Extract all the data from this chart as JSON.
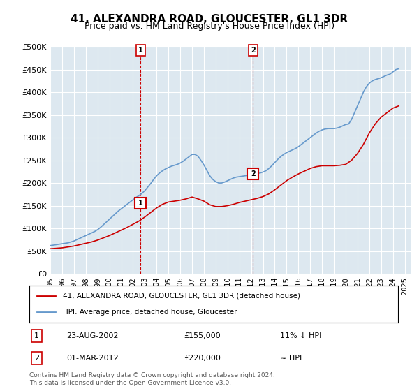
{
  "title": "41, ALEXANDRA ROAD, GLOUCESTER, GL1 3DR",
  "subtitle": "Price paid vs. HM Land Registry's House Price Index (HPI)",
  "hpi_color": "#6699cc",
  "price_color": "#cc0000",
  "vline_color": "#cc0000",
  "bg_color": "#dde8f0",
  "grid_color": "#ffffff",
  "ylim": [
    0,
    500000
  ],
  "yticks": [
    0,
    50000,
    100000,
    150000,
    200000,
    250000,
    300000,
    350000,
    400000,
    450000,
    500000
  ],
  "ytick_labels": [
    "£0",
    "£50K",
    "£100K",
    "£150K",
    "£200K",
    "£250K",
    "£300K",
    "£350K",
    "£400K",
    "£450K",
    "£500K"
  ],
  "xlim_start": 1995.0,
  "xlim_end": 2025.5,
  "xticks": [
    1995,
    1996,
    1997,
    1998,
    1999,
    2000,
    2001,
    2002,
    2003,
    2004,
    2005,
    2006,
    2007,
    2008,
    2009,
    2010,
    2011,
    2012,
    2013,
    2014,
    2015,
    2016,
    2017,
    2018,
    2019,
    2020,
    2021,
    2022,
    2023,
    2024,
    2025
  ],
  "purchase1_x": 2002.644,
  "purchase1_y": 155000,
  "purchase1_label": "1",
  "purchase1_date": "23-AUG-2002",
  "purchase1_price": "£155,000",
  "purchase1_hpi": "11% ↓ HPI",
  "purchase2_x": 2012.167,
  "purchase2_y": 220000,
  "purchase2_label": "2",
  "purchase2_date": "01-MAR-2012",
  "purchase2_price": "£220,000",
  "purchase2_hpi": "≈ HPI",
  "legend_line1": "41, ALEXANDRA ROAD, GLOUCESTER, GL1 3DR (detached house)",
  "legend_line2": "HPI: Average price, detached house, Gloucester",
  "footnote": "Contains HM Land Registry data © Crown copyright and database right 2024.\nThis data is licensed under the Open Government Licence v3.0.",
  "hpi_x": [
    1995.0,
    1995.25,
    1995.5,
    1995.75,
    1996.0,
    1996.25,
    1996.5,
    1996.75,
    1997.0,
    1997.25,
    1997.5,
    1997.75,
    1998.0,
    1998.25,
    1998.5,
    1998.75,
    1999.0,
    1999.25,
    1999.5,
    1999.75,
    2000.0,
    2000.25,
    2000.5,
    2000.75,
    2001.0,
    2001.25,
    2001.5,
    2001.75,
    2002.0,
    2002.25,
    2002.5,
    2002.75,
    2003.0,
    2003.25,
    2003.5,
    2003.75,
    2004.0,
    2004.25,
    2004.5,
    2004.75,
    2005.0,
    2005.25,
    2005.5,
    2005.75,
    2006.0,
    2006.25,
    2006.5,
    2006.75,
    2007.0,
    2007.25,
    2007.5,
    2007.75,
    2008.0,
    2008.25,
    2008.5,
    2008.75,
    2009.0,
    2009.25,
    2009.5,
    2009.75,
    2010.0,
    2010.25,
    2010.5,
    2010.75,
    2011.0,
    2011.25,
    2011.5,
    2011.75,
    2012.0,
    2012.25,
    2012.5,
    2012.75,
    2013.0,
    2013.25,
    2013.5,
    2013.75,
    2014.0,
    2014.25,
    2014.5,
    2014.75,
    2015.0,
    2015.25,
    2015.5,
    2015.75,
    2016.0,
    2016.25,
    2016.5,
    2016.75,
    2017.0,
    2017.25,
    2017.5,
    2017.75,
    2018.0,
    2018.25,
    2018.5,
    2018.75,
    2019.0,
    2019.25,
    2019.5,
    2019.75,
    2020.0,
    2020.25,
    2020.5,
    2020.75,
    2021.0,
    2021.25,
    2021.5,
    2021.75,
    2022.0,
    2022.25,
    2022.5,
    2022.75,
    2023.0,
    2023.25,
    2023.5,
    2023.75,
    2024.0,
    2024.25,
    2024.5
  ],
  "hpi_y": [
    62000,
    63000,
    64000,
    65000,
    66000,
    67000,
    68000,
    70000,
    72000,
    75000,
    78000,
    81000,
    84000,
    87000,
    90000,
    93000,
    97000,
    102000,
    108000,
    114000,
    120000,
    126000,
    132000,
    138000,
    143000,
    148000,
    153000,
    158000,
    163000,
    168000,
    172000,
    177000,
    183000,
    191000,
    199000,
    208000,
    216000,
    222000,
    227000,
    231000,
    234000,
    237000,
    239000,
    241000,
    244000,
    248000,
    253000,
    258000,
    263000,
    263000,
    259000,
    250000,
    240000,
    228000,
    216000,
    208000,
    203000,
    200000,
    200000,
    202000,
    205000,
    208000,
    211000,
    213000,
    214000,
    215000,
    216000,
    217000,
    218000,
    220000,
    221000,
    222000,
    224000,
    227000,
    232000,
    238000,
    245000,
    252000,
    258000,
    263000,
    267000,
    270000,
    273000,
    276000,
    280000,
    285000,
    290000,
    295000,
    300000,
    305000,
    310000,
    314000,
    317000,
    319000,
    320000,
    320000,
    320000,
    321000,
    323000,
    326000,
    329000,
    330000,
    340000,
    355000,
    370000,
    385000,
    400000,
    412000,
    420000,
    425000,
    428000,
    430000,
    432000,
    435000,
    438000,
    440000,
    445000,
    450000,
    452000
  ],
  "price_x": [
    1995.0,
    1995.5,
    1996.0,
    1996.5,
    1997.0,
    1997.5,
    1998.0,
    1998.5,
    1999.0,
    1999.5,
    2000.0,
    2000.5,
    2001.0,
    2001.5,
    2002.0,
    2002.5,
    2003.0,
    2003.5,
    2004.0,
    2004.5,
    2005.0,
    2005.5,
    2006.0,
    2006.5,
    2007.0,
    2007.5,
    2008.0,
    2008.5,
    2009.0,
    2009.5,
    2010.0,
    2010.5,
    2011.0,
    2011.5,
    2012.0,
    2012.5,
    2013.0,
    2013.5,
    2014.0,
    2014.5,
    2015.0,
    2015.5,
    2016.0,
    2016.5,
    2017.0,
    2017.5,
    2018.0,
    2018.5,
    2019.0,
    2019.5,
    2020.0,
    2020.5,
    2021.0,
    2021.5,
    2022.0,
    2022.5,
    2023.0,
    2023.5,
    2024.0,
    2024.5
  ],
  "price_y": [
    55000,
    56000,
    57000,
    59000,
    61000,
    64000,
    67000,
    70000,
    74000,
    79000,
    84000,
    90000,
    96000,
    102000,
    109000,
    116000,
    125000,
    135000,
    145000,
    153000,
    158000,
    160000,
    162000,
    165000,
    169000,
    165000,
    160000,
    152000,
    148000,
    148000,
    150000,
    153000,
    157000,
    160000,
    163000,
    166000,
    170000,
    176000,
    185000,
    195000,
    205000,
    213000,
    220000,
    226000,
    232000,
    236000,
    238000,
    238000,
    238000,
    239000,
    241000,
    250000,
    265000,
    285000,
    310000,
    330000,
    345000,
    355000,
    365000,
    370000
  ]
}
